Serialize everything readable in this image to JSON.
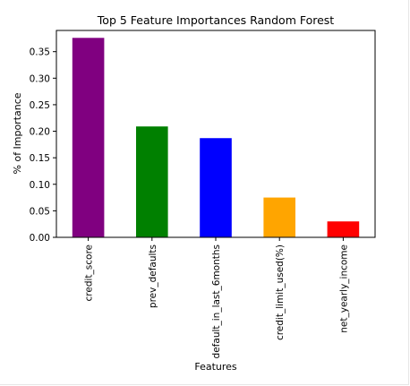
{
  "chart_data": {
    "type": "bar",
    "title": "Top 5 Feature Importances Random Forest",
    "xlabel": "Features",
    "ylabel": "% of Importance",
    "categories": [
      "credit_score",
      "prev_defaults",
      "default_in_last_6months",
      "credit_limit_used(%)",
      "net_yearly_income"
    ],
    "values": [
      0.376,
      0.209,
      0.187,
      0.075,
      0.03
    ],
    "colors": [
      "#800080",
      "#008000",
      "#0000ff",
      "#ffa500",
      "#ff0000"
    ],
    "ylim": [
      0,
      0.39
    ],
    "yticks": [
      "0.00",
      "0.05",
      "0.10",
      "0.15",
      "0.20",
      "0.25",
      "0.30",
      "0.35"
    ],
    "grid": false
  }
}
